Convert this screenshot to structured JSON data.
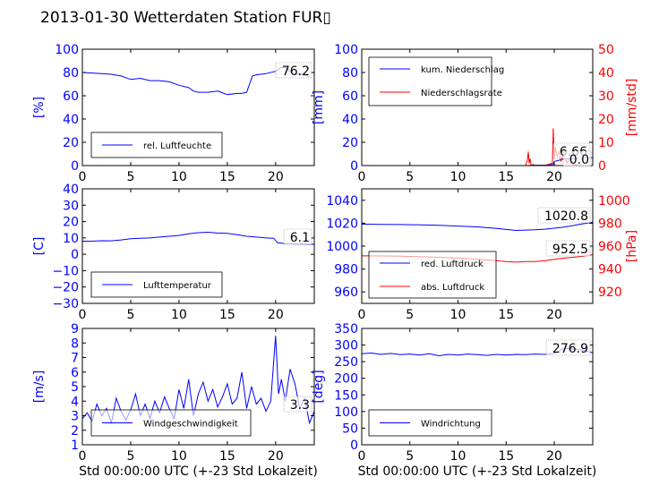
{
  "figure": {
    "title": "2013-01-30 Wetterdaten Station FUR▯"
  },
  "chart_data": [
    {
      "id": "humidity",
      "type": "line",
      "ylabel": "[%]",
      "ylim": [
        0,
        100
      ],
      "yticks": [
        "0",
        "20",
        "40",
        "60",
        "80",
        "100"
      ],
      "xlim": [
        0,
        24
      ],
      "xticks": [
        "0",
        "5",
        "10",
        "15",
        "20"
      ],
      "series": [
        {
          "name": "rel. Luftfeuchte",
          "color": "#0000ff",
          "x": [
            0,
            1,
            2,
            3,
            4,
            5,
            6,
            7,
            8,
            9,
            10,
            11,
            11.5,
            12,
            13,
            14,
            15,
            16,
            16.5,
            17,
            17.3,
            17.6,
            18,
            19,
            20,
            20.5,
            21,
            21.5,
            22,
            22.5,
            23,
            23.5
          ],
          "y": [
            80,
            79.5,
            79,
            78.5,
            77,
            74,
            75,
            73,
            73,
            72,
            69,
            67,
            64,
            63,
            63,
            64,
            61,
            62,
            62,
            63,
            70,
            77,
            78,
            79,
            81,
            84,
            84.5,
            81,
            78,
            79,
            78,
            76.2
          ]
        }
      ],
      "last_value": "76.2",
      "legend_placement": "lower-left"
    },
    {
      "id": "precipitation",
      "type": "line",
      "ylabel": "[mm]",
      "ylabel_right": "[mm/std]",
      "ylim": [
        0,
        100
      ],
      "ylim_right": [
        0,
        50
      ],
      "yticks": [
        "0",
        "20",
        "40",
        "60",
        "80",
        "100"
      ],
      "yticks_right": [
        "0",
        "10",
        "20",
        "30",
        "40",
        "50"
      ],
      "xlim": [
        0,
        24
      ],
      "xticks": [
        "0",
        "5",
        "10",
        "15",
        "20"
      ],
      "series": [
        {
          "name": "kum. Niederschlag",
          "color": "#0000ff",
          "axis": "left",
          "x": [
            0,
            17,
            18,
            19,
            19.9,
            20,
            21,
            22,
            23,
            24
          ],
          "y": [
            0,
            0,
            0.3,
            0.4,
            1,
            3.5,
            5.5,
            6,
            6.5,
            6.66
          ]
        },
        {
          "name": "Niederschlagsrate",
          "color": "#ff0000",
          "axis": "right",
          "x": [
            0,
            17,
            17.2,
            17.3,
            17.4,
            17.5,
            17.6,
            17.8,
            18,
            19,
            19.8,
            19.9,
            20,
            20.1,
            20.3,
            20.5,
            20.7,
            21,
            21.3,
            21.6,
            22,
            22.5,
            23,
            24
          ],
          "y": [
            0,
            0,
            2,
            6,
            1,
            3,
            0,
            0.5,
            0,
            0,
            1,
            16,
            3,
            8,
            4,
            6,
            2,
            5,
            1,
            3,
            0.5,
            0.2,
            0,
            0
          ]
        }
      ],
      "last_value": "6.66",
      "last_value_2": "0.0",
      "legend_placement": "upper-left"
    },
    {
      "id": "temperature",
      "type": "line",
      "ylabel": "[C]",
      "ylim": [
        -30,
        40
      ],
      "yticks": [
        "−30",
        "−20",
        "−10",
        "0",
        "10",
        "20",
        "30",
        "40"
      ],
      "xlim": [
        0,
        24
      ],
      "xticks": [
        "0",
        "5",
        "10",
        "15",
        "20"
      ],
      "series": [
        {
          "name": "Lufttemperatur",
          "color": "#0000ff",
          "x": [
            0,
            1,
            2,
            3,
            4,
            5,
            6,
            7,
            8,
            9,
            10,
            11,
            12,
            13,
            14,
            15,
            16,
            17,
            18,
            19,
            19.8,
            20.2,
            21,
            22,
            23,
            24
          ],
          "y": [
            8,
            8,
            8.3,
            8.2,
            8.8,
            9.5,
            9.8,
            10,
            10.5,
            11,
            11.5,
            12.5,
            13.2,
            13.5,
            13,
            12.8,
            12,
            11,
            10.5,
            10,
            9.8,
            7,
            6.5,
            6.3,
            6.2,
            6.1
          ]
        }
      ],
      "last_value": "6.1",
      "legend_placement": "lower-left"
    },
    {
      "id": "pressure",
      "type": "line",
      "ylabel_right": "[hPa]",
      "ylim": [
        950,
        1050
      ],
      "ylim_right": [
        910,
        1010
      ],
      "yticks": [
        "960",
        "980",
        "1000",
        "1020",
        "1040"
      ],
      "yticks_right": [
        "920",
        "940",
        "960",
        "980",
        "1000"
      ],
      "xlim": [
        0,
        24
      ],
      "xticks": [
        "0",
        "5",
        "10",
        "15",
        "20"
      ],
      "series": [
        {
          "name": "red. Luftdruck",
          "color": "#0000ff",
          "axis": "left",
          "x": [
            0,
            2,
            4,
            6,
            8,
            10,
            12,
            14,
            15,
            16,
            17,
            18,
            19,
            20,
            21,
            22,
            23,
            24
          ],
          "y": [
            1019.2,
            1019,
            1018.8,
            1018.6,
            1018.2,
            1017.5,
            1016.8,
            1015.5,
            1014.5,
            1013.7,
            1014,
            1014.2,
            1014.8,
            1015.6,
            1016.6,
            1018,
            1019.5,
            1020.8
          ]
        },
        {
          "name": "abs. Luftdruck",
          "color": "#ff0000",
          "axis": "right",
          "x": [
            0,
            2,
            4,
            6,
            8,
            10,
            12,
            14,
            15,
            16,
            17,
            18,
            19,
            20,
            21,
            22,
            23,
            24
          ],
          "y": [
            951.5,
            951.4,
            951.2,
            950.8,
            950.2,
            949.6,
            948.5,
            947.2,
            946.5,
            946,
            946.5,
            946.6,
            947.2,
            948.4,
            949.5,
            950.2,
            951.2,
            952.5
          ]
        }
      ],
      "last_value": "1020.8",
      "last_value_2": "952.5",
      "legend_placement": "lower-left"
    },
    {
      "id": "windspeed",
      "type": "line",
      "xlabel": "Std 00:00:00 UTC (+-23 Std Lokalzeit)",
      "ylabel": "[m/s]",
      "ylim": [
        1,
        9
      ],
      "yticks": [
        "1",
        "2",
        "3",
        "4",
        "5",
        "6",
        "7",
        "8",
        "9"
      ],
      "xlim": [
        0,
        24
      ],
      "xticks": [
        "0",
        "5",
        "10",
        "15",
        "20"
      ],
      "series": [
        {
          "name": "Windgeschwindigkeit",
          "color": "#0000ff",
          "x": [
            0,
            0.5,
            1,
            1.5,
            2,
            2.5,
            3,
            3.5,
            4,
            4.5,
            5,
            5.5,
            6,
            6.5,
            7,
            7.5,
            8,
            8.5,
            9,
            9.5,
            10,
            10.5,
            11,
            11.5,
            12,
            12.5,
            13,
            13.5,
            14,
            14.5,
            15,
            15.5,
            16,
            16.5,
            17,
            17.5,
            18,
            18.5,
            19,
            19.5,
            20,
            20.3,
            20.6,
            21,
            21.5,
            22,
            22.5,
            23,
            23.5,
            24
          ],
          "y": [
            2.8,
            3.2,
            2.6,
            3.8,
            3,
            3.5,
            2.5,
            4.2,
            3.3,
            2.7,
            3.4,
            4.5,
            3,
            3.8,
            2.8,
            4,
            3.2,
            4.3,
            3.5,
            2.8,
            4.8,
            3.5,
            5.5,
            3,
            4.5,
            5.3,
            4,
            4.8,
            3.6,
            4.3,
            5.2,
            3.8,
            4.2,
            6,
            3.5,
            5,
            3.8,
            4.2,
            3.3,
            4,
            8.5,
            4.5,
            5.5,
            4,
            6.2,
            5.2,
            3.5,
            4.2,
            2.5,
            3.3
          ]
        }
      ],
      "last_value": "3.3",
      "legend_placement": "lower-left"
    },
    {
      "id": "winddirection",
      "type": "line",
      "xlabel": "Std 00:00:00 UTC (+-23 Std Lokalzeit)",
      "ylabel": "[deg]",
      "ylim": [
        0,
        350
      ],
      "yticks": [
        "0",
        "50",
        "100",
        "150",
        "200",
        "250",
        "300",
        "350"
      ],
      "xlim": [
        0,
        24
      ],
      "xticks": [
        "0",
        "5",
        "10",
        "15",
        "20"
      ],
      "series": [
        {
          "name": "Windrichtung",
          "color": "#0000ff",
          "x": [
            0,
            1,
            2,
            3,
            4,
            5,
            6,
            7,
            8,
            9,
            10,
            11,
            12,
            13,
            14,
            15,
            16,
            17,
            18,
            19,
            20,
            21,
            22,
            23,
            24
          ],
          "y": [
            274,
            276,
            272,
            275,
            271,
            273,
            270,
            274,
            268,
            272,
            270,
            273,
            271,
            269,
            272,
            270,
            272,
            271,
            273,
            272,
            275,
            290,
            288,
            285,
            276.9
          ]
        }
      ],
      "last_value": "276.9",
      "legend_placement": "lower-left"
    }
  ]
}
